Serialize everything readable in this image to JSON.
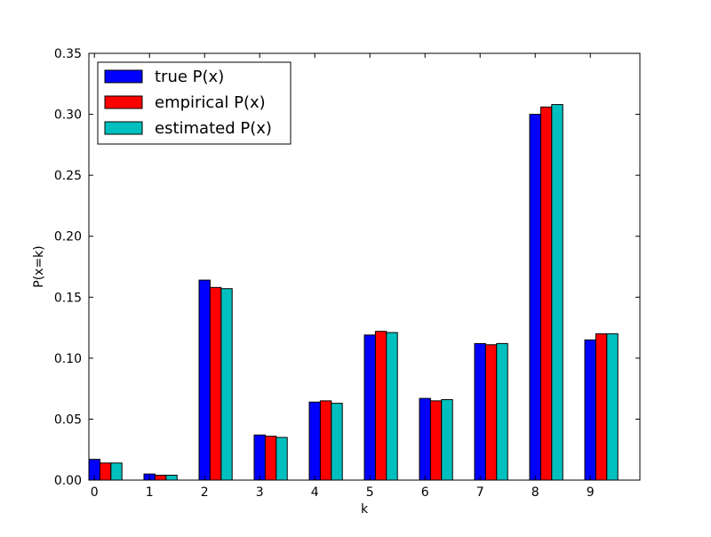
{
  "chart_data": {
    "type": "bar",
    "title": "",
    "xlabel": "k",
    "ylabel": "P(x=k)",
    "categories": [
      "0",
      "1",
      "2",
      "3",
      "4",
      "5",
      "6",
      "7",
      "8",
      "9"
    ],
    "ylim": [
      0,
      0.35
    ],
    "yticks": [
      "0.00",
      "0.05",
      "0.10",
      "0.15",
      "0.20",
      "0.25",
      "0.30",
      "0.35"
    ],
    "grid": false,
    "legend_position": "top-left",
    "series": [
      {
        "name": "true P(x)",
        "color": "#0000ff",
        "values": [
          0.017,
          0.005,
          0.164,
          0.037,
          0.064,
          0.119,
          0.067,
          0.112,
          0.3,
          0.115
        ]
      },
      {
        "name": "empirical P(x)",
        "color": "#ff0000",
        "values": [
          0.014,
          0.004,
          0.158,
          0.036,
          0.065,
          0.122,
          0.065,
          0.111,
          0.306,
          0.12
        ]
      },
      {
        "name": "estimated P(x)",
        "color": "#00bfbf",
        "values": [
          0.014,
          0.004,
          0.157,
          0.035,
          0.063,
          0.121,
          0.066,
          0.112,
          0.308,
          0.12
        ]
      }
    ]
  }
}
